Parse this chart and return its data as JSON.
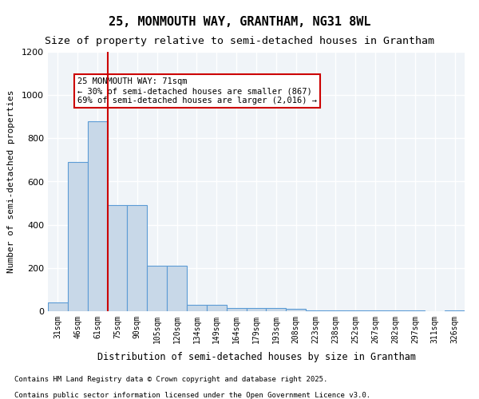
{
  "title_line1": "25, MONMOUTH WAY, GRANTHAM, NG31 8WL",
  "title_line2": "Size of property relative to semi-detached houses in Grantham",
  "xlabel": "Distribution of semi-detached houses by size in Grantham",
  "ylabel": "Number of semi-detached properties",
  "categories": [
    "31sqm",
    "46sqm",
    "61sqm",
    "75sqm",
    "90sqm",
    "105sqm",
    "120sqm",
    "134sqm",
    "149sqm",
    "164sqm",
    "179sqm",
    "193sqm",
    "208sqm",
    "223sqm",
    "238sqm",
    "252sqm",
    "267sqm",
    "282sqm",
    "297sqm",
    "311sqm",
    "326sqm"
  ],
  "values": [
    40,
    690,
    880,
    490,
    490,
    210,
    210,
    30,
    30,
    15,
    15,
    15,
    10,
    5,
    5,
    5,
    3,
    2,
    2,
    1,
    2
  ],
  "bar_color": "#c8d8e8",
  "bar_edge_color": "#5b9bd5",
  "property_line_x": 2.5,
  "property_value": "71sqm",
  "annotation_title": "25 MONMOUTH WAY: 71sqm",
  "annotation_line1": "← 30% of semi-detached houses are smaller (867)",
  "annotation_line2": "69% of semi-detached houses are larger (2,016) →",
  "annotation_box_color": "#ffffff",
  "annotation_box_edge": "#cc0000",
  "vline_color": "#cc0000",
  "ylim": [
    0,
    1200
  ],
  "yticks": [
    0,
    200,
    400,
    600,
    800,
    1000,
    1200
  ],
  "footnote_line1": "Contains HM Land Registry data © Crown copyright and database right 2025.",
  "footnote_line2": "Contains public sector information licensed under the Open Government Licence v3.0.",
  "background_color": "#f0f4f8",
  "grid_color": "#ffffff"
}
